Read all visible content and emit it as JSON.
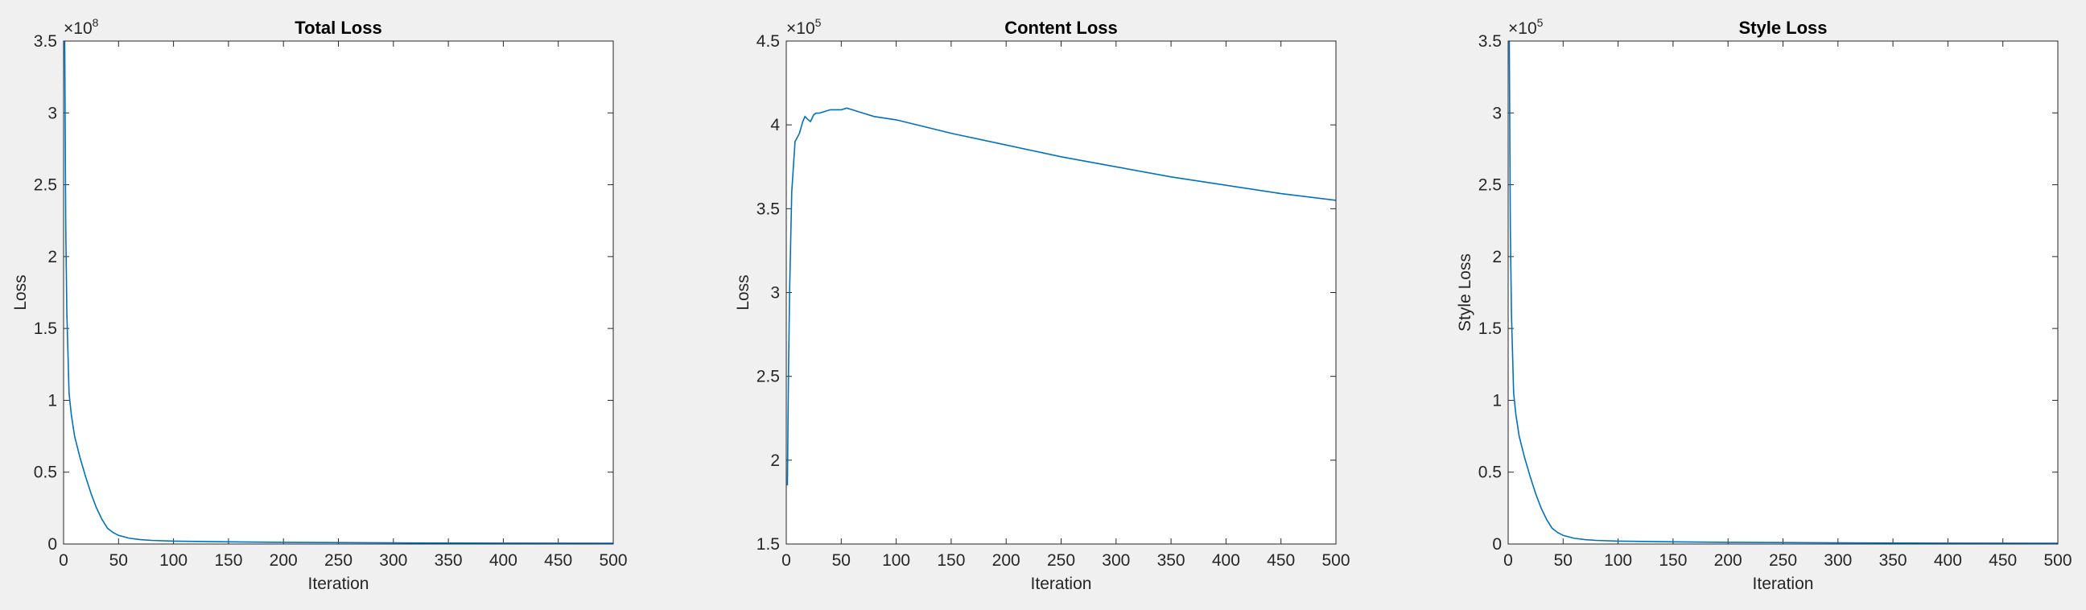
{
  "chart_data": [
    {
      "type": "line",
      "title": "Total Loss",
      "xlabel": "Iteration",
      "ylabel": "Loss",
      "y_exponent": {
        "base": "×10",
        "power": "8"
      },
      "x": [
        1,
        2,
        3,
        5,
        7,
        10,
        15,
        20,
        25,
        30,
        35,
        40,
        45,
        50,
        60,
        70,
        80,
        100,
        150,
        200,
        300,
        400,
        500
      ],
      "values": [
        3.5,
        2.2,
        1.6,
        1.05,
        0.9,
        0.75,
        0.6,
        0.47,
        0.35,
        0.25,
        0.17,
        0.11,
        0.08,
        0.06,
        0.04,
        0.03,
        0.025,
        0.02,
        0.015,
        0.012,
        0.008,
        0.006,
        0.005
      ],
      "color": "#0072bd",
      "xlim": [
        0,
        500
      ],
      "ylim": [
        0,
        3.5
      ],
      "xticks": [
        0,
        50,
        100,
        150,
        200,
        250,
        300,
        350,
        400,
        450,
        500
      ],
      "yticks": [
        0,
        0.5,
        1,
        1.5,
        2,
        2.5,
        3,
        3.5
      ]
    },
    {
      "type": "line",
      "title": "Content Loss",
      "xlabel": "Iteration",
      "ylabel": "Loss",
      "y_exponent": {
        "base": "×10",
        "power": "5"
      },
      "x": [
        1,
        2,
        3,
        5,
        8,
        12,
        15,
        17,
        20,
        22,
        25,
        27,
        30,
        35,
        40,
        50,
        55,
        60,
        70,
        80,
        100,
        150,
        200,
        250,
        300,
        350,
        400,
        450,
        500
      ],
      "values": [
        1.85,
        2.5,
        3.0,
        3.6,
        3.9,
        3.95,
        4.02,
        4.05,
        4.03,
        4.02,
        4.06,
        4.07,
        4.07,
        4.08,
        4.09,
        4.09,
        4.1,
        4.09,
        4.07,
        4.05,
        4.03,
        3.95,
        3.88,
        3.81,
        3.75,
        3.69,
        3.64,
        3.59,
        3.55
      ],
      "color": "#0072bd",
      "xlim": [
        0,
        500
      ],
      "ylim": [
        1.5,
        4.5
      ],
      "xticks": [
        0,
        50,
        100,
        150,
        200,
        250,
        300,
        350,
        400,
        450,
        500
      ],
      "yticks": [
        1.5,
        2,
        2.5,
        3,
        3.5,
        4,
        4.5
      ]
    },
    {
      "type": "line",
      "title": "Style Loss",
      "xlabel": "Iteration",
      "ylabel": "Style Loss",
      "y_exponent": {
        "base": "×10",
        "power": "5"
      },
      "x": [
        1,
        2,
        3,
        5,
        7,
        10,
        15,
        20,
        25,
        30,
        35,
        40,
        45,
        50,
        60,
        70,
        80,
        100,
        150,
        200,
        300,
        400,
        500
      ],
      "values": [
        3.5,
        2.2,
        1.6,
        1.05,
        0.9,
        0.75,
        0.6,
        0.47,
        0.35,
        0.25,
        0.17,
        0.11,
        0.08,
        0.06,
        0.04,
        0.03,
        0.025,
        0.02,
        0.015,
        0.012,
        0.008,
        0.006,
        0.005
      ],
      "color": "#0072bd",
      "xlim": [
        0,
        500
      ],
      "ylim": [
        0,
        3.5
      ],
      "xticks": [
        0,
        50,
        100,
        150,
        200,
        250,
        300,
        350,
        400,
        450,
        500
      ],
      "yticks": [
        0,
        0.5,
        1,
        1.5,
        2,
        2.5,
        3,
        3.5
      ]
    }
  ]
}
